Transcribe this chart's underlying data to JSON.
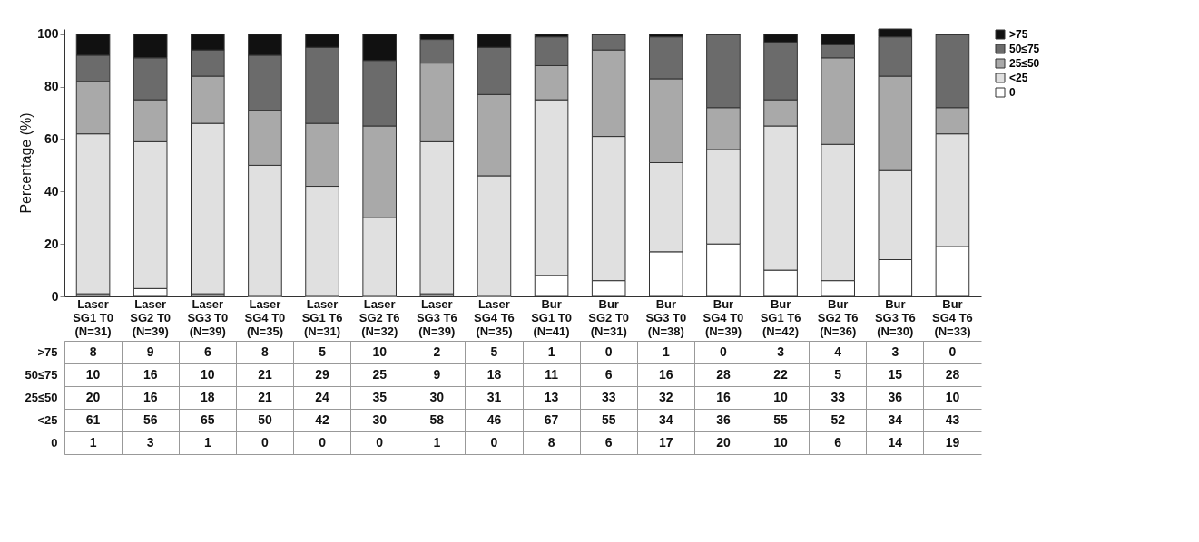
{
  "chart_data": {
    "type": "bar",
    "stacked": true,
    "ylabel": "Percentage (%)",
    "categories": [
      "Laser\nSG1 T0\n(N=31)",
      "Laser\nSG2 T0\n(N=39)",
      "Laser\nSG3 T0\n(N=39)",
      "Laser\nSG4  T0\n(N=35)",
      "Laser\nSG1 T6\n(N=31)",
      "Laser\nSG2 T6\n(N=32)",
      "Laser\nSG3 T6\n(N=39)",
      "Laser\nSG4  T6\n(N=35)",
      "Bur\nSG1 T0\n(N=41)",
      "Bur\nSG2 T0\n(N=31)",
      "Bur\nSG3 T0\n(N=38)",
      "Bur\nSG4 T0\n(N=39)",
      "Bur\nSG1 T6\n(N=42)",
      "Bur\nSG2 T6\n(N=36)",
      "Bur\nSG3 T6\n(N=30)",
      "Bur\nSG4 T6\n(N=33)"
    ],
    "series": [
      {
        "name": "0",
        "color": "#ffffff",
        "values": [
          1,
          3,
          1,
          0,
          0,
          0,
          1,
          0,
          8,
          6,
          17,
          20,
          10,
          6,
          14,
          19
        ]
      },
      {
        "name": "<25",
        "color": "#e0e0e0",
        "values": [
          61,
          56,
          65,
          50,
          42,
          30,
          58,
          46,
          67,
          55,
          34,
          36,
          55,
          52,
          34,
          43
        ]
      },
      {
        "name": "25≤50",
        "color": "#a9a9a9",
        "values": [
          20,
          16,
          18,
          21,
          24,
          35,
          30,
          31,
          13,
          33,
          32,
          16,
          10,
          33,
          36,
          10
        ]
      },
      {
        "name": "50≤75",
        "color": "#6b6b6b",
        "values": [
          10,
          16,
          10,
          21,
          29,
          25,
          9,
          18,
          11,
          6,
          16,
          28,
          22,
          5,
          15,
          28
        ]
      },
      {
        "name": ">75",
        "color": "#111111",
        "values": [
          8,
          9,
          6,
          8,
          5,
          10,
          2,
          5,
          1,
          0,
          1,
          0,
          3,
          4,
          3,
          0
        ]
      }
    ],
    "ylim": [
      0,
      102
    ],
    "yticks": [
      0,
      20,
      40,
      60,
      80,
      100
    ],
    "grid": false,
    "legend": "right",
    "data_labels": true
  }
}
